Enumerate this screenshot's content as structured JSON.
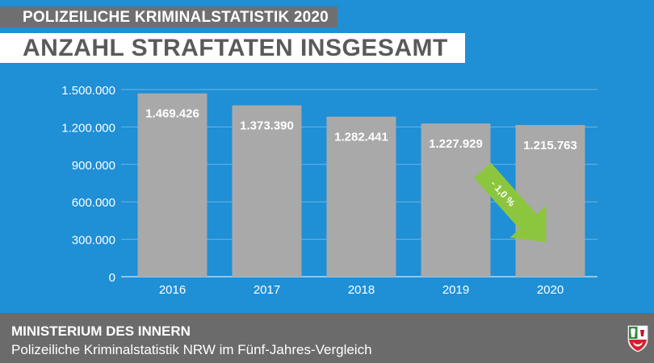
{
  "header": {
    "supertitle": "POLIZEILICHE KRIMINALSTATISTIK 2020",
    "title": "ANZAHL STRAFTATEN INSGESAMT"
  },
  "footer": {
    "org": "MINISTERIUM DES INNERN",
    "subtitle": "Polizeiliche Kriminalstatistik NRW im Fünf-Jahres-Vergleich",
    "logo_icon": "nrw-coat-of-arms-icon"
  },
  "colors": {
    "background": "#1f8fd6",
    "bar": "#a9a9a9",
    "arrow": "#8cc63f",
    "header_bg": "#6f6f6f",
    "title_text": "#5a5a5a"
  },
  "chart_data": {
    "type": "bar",
    "categories": [
      "2016",
      "2017",
      "2018",
      "2019",
      "2020"
    ],
    "values": [
      1469426,
      1373390,
      1282441,
      1227929,
      1215763
    ],
    "data_labels": [
      "1.469.426",
      "1.373.390",
      "1.282.441",
      "1.227.929",
      "1.215.763"
    ],
    "yticks": [
      0,
      300000,
      600000,
      900000,
      1200000,
      1500000
    ],
    "ytick_labels": [
      "0",
      "300.000",
      "600.000",
      "900.000",
      "1.200.000",
      "1.500.000"
    ],
    "ylim": [
      0,
      1500000
    ],
    "grid": true,
    "annotation": {
      "text": "- 1,0 %",
      "between": [
        "2019",
        "2020"
      ]
    }
  }
}
